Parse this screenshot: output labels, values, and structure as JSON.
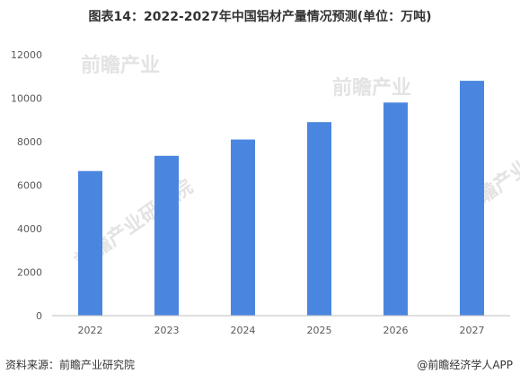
{
  "chart_data": {
    "type": "bar",
    "title": "图表14：2022-2027年中国铝材产量情况预测(单位：万吨)",
    "categories": [
      "2022",
      "2023",
      "2024",
      "2025",
      "2026",
      "2027"
    ],
    "values": [
      6650,
      7350,
      8100,
      8900,
      9800,
      10800
    ],
    "ylim": [
      0,
      12000
    ],
    "yticks": [
      0,
      2000,
      4000,
      6000,
      8000,
      10000,
      12000
    ],
    "grid": false,
    "legend": "none",
    "colors": {
      "bar": "#4a86e0",
      "axis": "#bfbfbf",
      "text": "#595959"
    }
  },
  "footer": {
    "source": "资料来源：前瞻产业研究院",
    "credit": "@前瞻经济学人APP"
  },
  "watermark": {
    "brand": "前瞻产业研究院",
    "short": "前瞻产业"
  }
}
